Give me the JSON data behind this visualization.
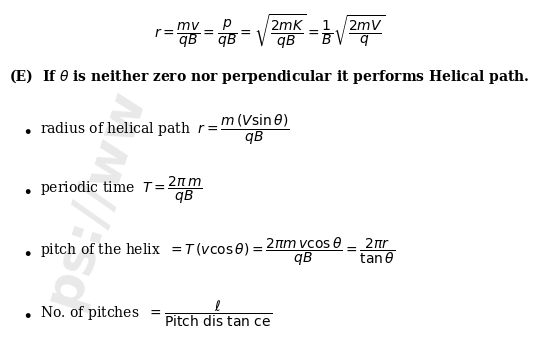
{
  "background_color": "#ffffff",
  "text_color": "#000000",
  "figsize": [
    5.6,
    3.62
  ],
  "dpi": 100,
  "watermark_text": "ps://ww",
  "watermark_color": "#c8c8c8",
  "watermark_alpha": 0.4,
  "line1": "$r = \\dfrac{mv}{qB} = \\dfrac{p}{qB} = \\sqrt{\\dfrac{2mK}{qB}} = \\dfrac{1}{B}\\sqrt{\\dfrac{2mV}{q}}$",
  "line_E": "(E)",
  "line_E_text": "If $\\theta$ is neither zero nor perpendicular it performs Helical path.",
  "b1_text": "radius of helical path",
  "b1_formula": "$r = \\dfrac{m\\,(V\\sin\\theta)}{qB}$",
  "b2_text": "periodic time",
  "b2_formula": "$T = \\dfrac{2\\pi\\,m}{qB}$",
  "b3_text": "pitch of the helix",
  "b3_formula": "$= T\\,(v\\cos\\theta) = \\dfrac{2\\pi m\\,v\\cos\\theta}{qB} = \\dfrac{2\\pi r}{\\tan\\theta}$",
  "b4_text": "No. of pitches",
  "b4_formula": "$= \\dfrac{\\ell}{\\text{Pitch dis tan ce}}$",
  "font_size": 10,
  "bullet_size": 12
}
